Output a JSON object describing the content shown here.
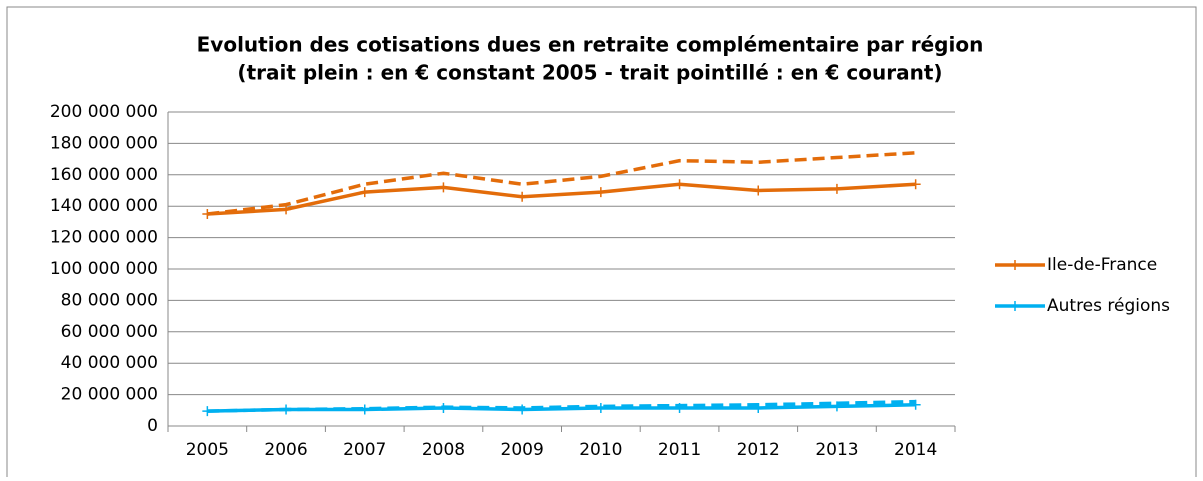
{
  "chart_data": {
    "type": "line",
    "title": "Evolution des cotisations dues en retraite complémentaire par région",
    "subtitle": "(trait plein : en € constant 2005 - trait pointillé : en € courant)",
    "categories": [
      "2005",
      "2006",
      "2007",
      "2008",
      "2009",
      "2010",
      "2011",
      "2012",
      "2013",
      "2014"
    ],
    "series": [
      {
        "name": "Ile-de-France",
        "color": "#e36c0a",
        "values": [
          135000000,
          138000000,
          149000000,
          152000000,
          146000000,
          149000000,
          154000000,
          150000000,
          151000000,
          154000000
        ]
      },
      {
        "name": "Autres régions",
        "color": "#00b0f0",
        "values": [
          9500000,
          10500000,
          10500000,
          11500000,
          10500000,
          11500000,
          11500000,
          11500000,
          12500000,
          13500000
        ]
      },
      {
        "color": "#e36c0a",
        "dashed": true,
        "values": [
          135000000,
          141000000,
          154000000,
          161000000,
          154000000,
          159000000,
          169000000,
          168000000,
          171000000,
          174000000
        ]
      },
      {
        "color": "#00b0f0",
        "dashed": true,
        "values": [
          9500000,
          10500000,
          11000000,
          12000000,
          11500000,
          12500000,
          13000000,
          13500000,
          14500000,
          15500000
        ]
      }
    ],
    "ylim": [
      0,
      200000000
    ],
    "yticks": [
      {
        "value": 0,
        "label": "0"
      },
      {
        "value": 20000000,
        "label": "20 000 000"
      },
      {
        "value": 40000000,
        "label": "40 000 000"
      },
      {
        "value": 60000000,
        "label": "60 000 000"
      },
      {
        "value": 80000000,
        "label": "80 000 000"
      },
      {
        "value": 100000000,
        "label": "100 000 000"
      },
      {
        "value": 120000000,
        "label": "120 000 000"
      },
      {
        "value": 140000000,
        "label": "140 000 000"
      },
      {
        "value": 160000000,
        "label": "160 000 000"
      },
      {
        "value": 180000000,
        "label": "180 000 000"
      },
      {
        "value": 200000000,
        "label": "200 000 000"
      }
    ],
    "grid": true,
    "legend": "right"
  }
}
